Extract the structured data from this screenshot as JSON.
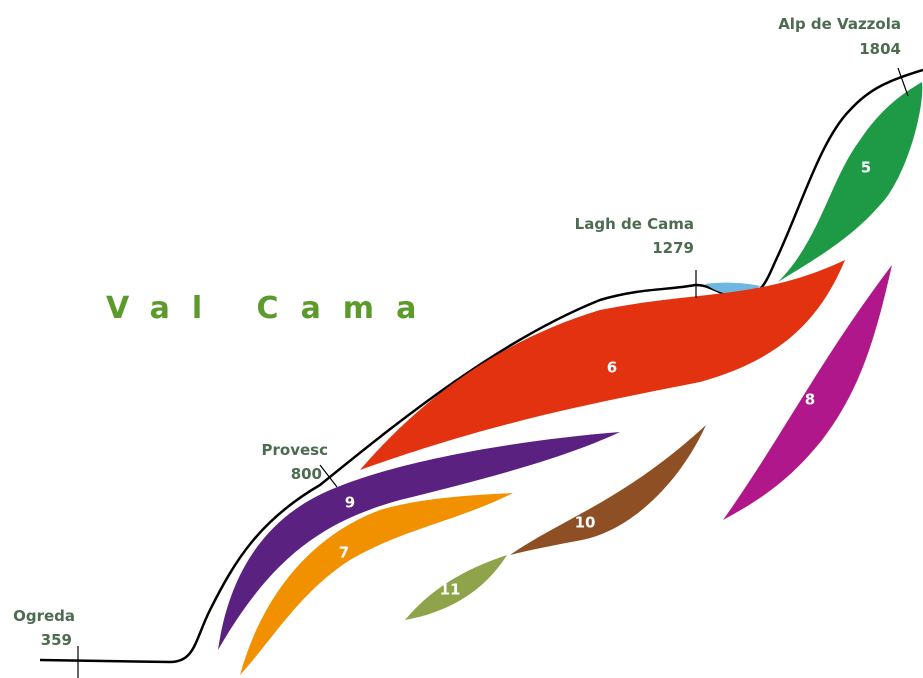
{
  "title": "Val Cama",
  "locations": [
    {
      "name": "Ogreda",
      "elevation": 359
    },
    {
      "name": "Provesc",
      "elevation": 800
    },
    {
      "name": "Lagh de Cama",
      "elevation": 1279
    },
    {
      "name": "Alp de Vazzola",
      "elevation": 1804
    }
  ],
  "zones": [
    {
      "label": "5"
    },
    {
      "label": "6"
    },
    {
      "label": "7"
    },
    {
      "label": "8"
    },
    {
      "label": "9"
    },
    {
      "label": "10"
    },
    {
      "label": "11"
    }
  ]
}
